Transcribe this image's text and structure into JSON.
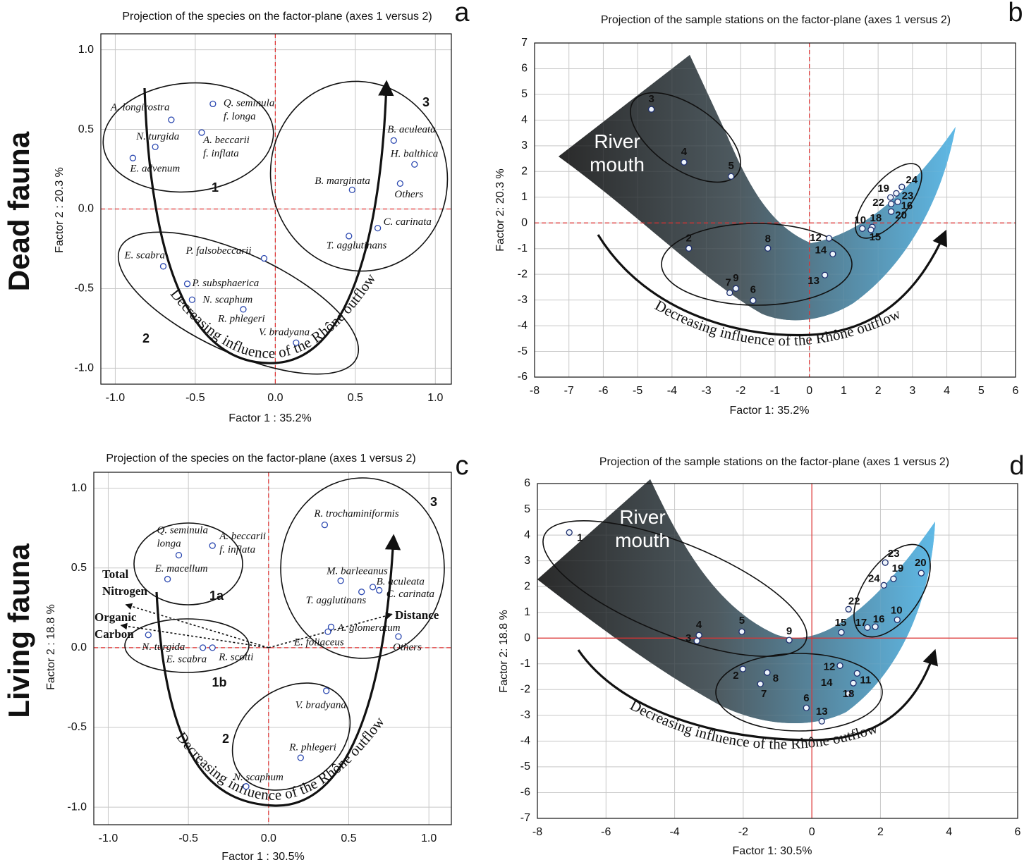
{
  "row_labels": [
    "Dead fauna",
    "Living fauna"
  ],
  "chart_data": [
    {
      "type": "scatter",
      "panel": "a",
      "title": "Projection of the species on the factor-plane (axes 1 versus 2)",
      "xlabel": "Factor 1 : 35.2%",
      "ylabel": "Factor 2 : 20.3 %",
      "xlim": [
        -1.09,
        1.1
      ],
      "ylim": [
        -1.1,
        1.1
      ],
      "xticks": [
        {
          "value": -1,
          "label": "-1.0"
        },
        -0.5,
        {
          "value": 0,
          "label": "0.0"
        },
        0.5,
        {
          "value": 1,
          "label": "1.0"
        }
      ],
      "yticks": [
        {
          "value": -1,
          "label": "-1.0"
        },
        -0.5,
        {
          "value": 0,
          "label": "0.0"
        },
        0.5,
        {
          "value": 1,
          "label": "1.0"
        }
      ],
      "grid": true,
      "zero_lines": "dashed",
      "zero_color": "#e03030",
      "marker_color": "#2b48b0",
      "labels": [
        "A. longirostra",
        "Q. seminula\nf. longa",
        "N. turgida",
        "A. beccarii\nf. inflata",
        "E. advenum",
        "B. aculeata",
        "H. balthica",
        "B. marginata",
        "Others",
        "C. carinata",
        "T. agglutinans",
        "E. scabra",
        "P. falsobeccarii",
        "P. subsphaerica",
        "N. scaphum",
        "R. phlegeri",
        "V. bradyana"
      ],
      "x": [
        -0.65,
        -0.39,
        -0.75,
        -0.46,
        -0.89,
        0.74,
        0.87,
        0.48,
        0.78,
        0.64,
        0.46,
        -0.7,
        -0.07,
        -0.55,
        -0.52,
        -0.2,
        0.13
      ],
      "values": [
        0.56,
        0.66,
        0.39,
        0.48,
        0.32,
        0.43,
        0.28,
        0.12,
        0.16,
        -0.12,
        -0.17,
        -0.36,
        -0.31,
        -0.47,
        -0.57,
        -0.63,
        -0.84
      ],
      "annotations": [
        "1",
        "2",
        "3"
      ],
      "arrow_text": "Decreasing influence of the Rhône outflow"
    },
    {
      "type": "scatter",
      "panel": "b",
      "title": "Projection of the sample stations on the factor-plane (axes 1 versus 2)",
      "xlabel": "Factor 1: 35.2%",
      "ylabel": "Factor 2: 20.3 %",
      "xlim": [
        -8,
        6
      ],
      "ylim": [
        -6,
        7
      ],
      "xticks": [
        -8,
        -7,
        -6,
        -5,
        -4,
        -3,
        -2,
        -1,
        0,
        1,
        2,
        3,
        4,
        5,
        6
      ],
      "yticks": [
        -6,
        -5,
        -4,
        -3,
        -2,
        -1,
        0,
        1,
        2,
        3,
        4,
        5,
        6,
        7
      ],
      "grid": true,
      "zero_lines": "dashed",
      "zero_color": "#e03030",
      "marker_color": "#1e2f6e",
      "labels": [
        "3",
        "4",
        "5",
        "2",
        "8",
        "7",
        "9",
        "6",
        "12",
        "14",
        "13",
        "10",
        "18",
        "15",
        "19",
        "24",
        "22",
        "23",
        "16",
        "20"
      ],
      "x": [
        -4.6,
        -3.65,
        -2.28,
        -3.51,
        -1.21,
        -2.32,
        -2.14,
        -1.64,
        0.57,
        0.68,
        0.45,
        1.54,
        1.83,
        1.79,
        2.36,
        2.69,
        2.38,
        2.53,
        2.57,
        2.38
      ],
      "values": [
        4.42,
        2.36,
        1.81,
        -0.99,
        -0.99,
        -2.72,
        -2.55,
        -3.02,
        -0.6,
        -1.21,
        -2.03,
        -0.22,
        -0.16,
        -0.27,
        0.99,
        1.4,
        0.74,
        1.15,
        0.82,
        0.44
      ],
      "annotations": [
        "River\nmouth"
      ],
      "arrow_text": "Decreasing influence of the Rhône outflow"
    },
    {
      "type": "scatter",
      "panel": "c",
      "title": "Projection of the species on the factor-plane (axes 1 versus 2)",
      "xlabel": "Factor 1 : 30.5%",
      "ylabel": "Factor 2 : 18.8 %",
      "xlim": [
        -1.09,
        1.14
      ],
      "ylim": [
        -1.11,
        1.1
      ],
      "xticks": [
        {
          "value": -1,
          "label": "-1.0"
        },
        -0.5,
        {
          "value": 0,
          "label": "0.0"
        },
        0.5,
        {
          "value": 1,
          "label": "1.0"
        }
      ],
      "yticks": [
        {
          "value": -1,
          "label": "-1.0"
        },
        -0.5,
        {
          "value": 0,
          "label": "0.0"
        },
        0.5,
        {
          "value": 1,
          "label": "1.0"
        }
      ],
      "grid": true,
      "zero_lines": "dashed",
      "zero_color": "#e03030",
      "marker_color": "#2b48b0",
      "labels": [
        "R. trochaminiformis",
        "Q. seminula\nlonga",
        "A. beccarii\nf. inflata",
        "E. macellum",
        "M. barleeanus",
        "B. aculeata",
        "C. carinata",
        "T. agglutinans",
        "A. glomeratum",
        "E. foliaceus",
        "Others",
        "N. turgida",
        "E. scabra",
        "R. scotti",
        "V. bradyana",
        "R. phlegeri",
        "N. scaphum"
      ],
      "x": [
        0.35,
        -0.56,
        -0.35,
        -0.63,
        0.45,
        0.65,
        0.69,
        0.58,
        0.39,
        0.37,
        0.81,
        -0.75,
        -0.41,
        -0.35,
        0.36,
        0.2,
        -0.14
      ],
      "values": [
        0.77,
        0.58,
        0.64,
        0.43,
        0.42,
        0.38,
        0.36,
        0.35,
        0.13,
        0.1,
        0.07,
        0.08,
        0.0,
        0.0,
        -0.27,
        -0.69,
        -0.87
      ],
      "vectors": [
        {
          "name": "Total\nNitrogen",
          "x": -0.89,
          "y": 0.27
        },
        {
          "name": "Organic\nCarbon",
          "x": -0.92,
          "y": 0.14
        },
        {
          "name": "Distance",
          "x": 0.77,
          "y": 0.21
        }
      ],
      "annotations": [
        "1a",
        "1b",
        "2",
        "3"
      ],
      "arrow_text": "Decreasing influence of the Rhône outflow"
    },
    {
      "type": "scatter",
      "panel": "d",
      "title": "Projection of the sample stations on the factor-plane (axes 1 versus 2)",
      "xlabel": "Factor 1: 30.5%",
      "ylabel": "Factor 2: 18.8 %",
      "xlim": [
        -8,
        6
      ],
      "ylim": [
        -7,
        6
      ],
      "xticks": [
        -8,
        -6,
        -4,
        -2,
        0,
        2,
        4,
        6
      ],
      "yticks": [
        -7,
        -6,
        -5,
        -4,
        -3,
        -2,
        -1,
        0,
        1,
        2,
        3,
        4,
        5,
        6
      ],
      "grid": true,
      "zero_lines": "solid",
      "zero_color": "#e03030",
      "marker_color": "#1e2f6e",
      "labels": [
        "1",
        "4",
        "3",
        "5",
        "9",
        "2",
        "8",
        "7",
        "6",
        "13",
        "12",
        "14",
        "11",
        "18",
        "15",
        "22",
        "17",
        "16",
        "10",
        "23",
        "19",
        "24",
        "20"
      ],
      "x": [
        -7.07,
        -3.29,
        -3.35,
        -2.04,
        -0.66,
        -2.01,
        -1.3,
        -1.5,
        -0.16,
        0.29,
        0.82,
        1.07,
        1.32,
        1.21,
        0.86,
        1.07,
        1.62,
        1.85,
        2.49,
        2.14,
        2.38,
        2.1,
        3.19
      ],
      "values": [
        4.1,
        0.11,
        -0.11,
        0.25,
        -0.08,
        -1.2,
        -1.34,
        -1.78,
        -2.71,
        -3.23,
        -1.07,
        -2.16,
        -1.37,
        -1.75,
        0.22,
        1.12,
        0.41,
        0.44,
        0.71,
        2.93,
        2.3,
        2.05,
        2.52
      ],
      "annotations": [
        "River\nmouth"
      ],
      "arrow_text": "Decreasing influence of the Rhône outflow"
    }
  ]
}
